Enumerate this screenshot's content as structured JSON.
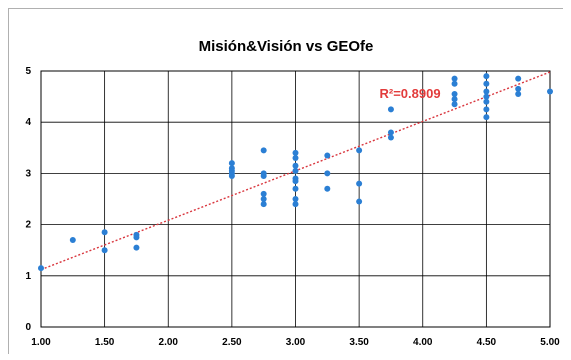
{
  "chart_data": {
    "type": "scatter",
    "title": "Misión&Visión vs GEOfe",
    "xlabel": "",
    "ylabel": "",
    "xlim": [
      1.0,
      5.0
    ],
    "ylim": [
      0,
      5
    ],
    "x_ticks": [
      "1.00",
      "1.50",
      "2.00",
      "2.50",
      "3.00",
      "3.50",
      "4.00",
      "4.50",
      "5.00"
    ],
    "y_ticks": [
      "0",
      "1",
      "2",
      "3",
      "4",
      "5"
    ],
    "grid": true,
    "legend": "none",
    "point_color": "#2b7fd4",
    "trendline": {
      "type": "linear",
      "color": "#d9363e",
      "style": "dotted",
      "x": [
        1.0,
        5.0
      ],
      "y": [
        1.12,
        4.98
      ],
      "label": "R²=0.8909"
    },
    "series": [
      {
        "points": [
          [
            1.0,
            1.15
          ],
          [
            1.25,
            1.7
          ],
          [
            1.5,
            1.85
          ],
          [
            1.5,
            1.5
          ],
          [
            1.75,
            1.8
          ],
          [
            1.75,
            1.75
          ],
          [
            1.75,
            1.55
          ],
          [
            2.5,
            3.2
          ],
          [
            2.5,
            3.1
          ],
          [
            2.5,
            3.05
          ],
          [
            2.5,
            3.0
          ],
          [
            2.5,
            2.95
          ],
          [
            2.75,
            3.45
          ],
          [
            2.75,
            3.0
          ],
          [
            2.75,
            2.95
          ],
          [
            2.75,
            2.6
          ],
          [
            2.75,
            2.5
          ],
          [
            2.75,
            2.4
          ],
          [
            3.0,
            3.4
          ],
          [
            3.0,
            3.3
          ],
          [
            3.0,
            3.15
          ],
          [
            3.0,
            3.05
          ],
          [
            3.0,
            2.9
          ],
          [
            3.0,
            2.85
          ],
          [
            3.0,
            2.7
          ],
          [
            3.0,
            2.5
          ],
          [
            3.0,
            2.4
          ],
          [
            3.25,
            3.35
          ],
          [
            3.25,
            3.0
          ],
          [
            3.25,
            2.7
          ],
          [
            3.5,
            3.45
          ],
          [
            3.5,
            2.8
          ],
          [
            3.5,
            2.45
          ],
          [
            3.75,
            4.25
          ],
          [
            3.75,
            3.8
          ],
          [
            3.75,
            3.7
          ],
          [
            4.25,
            4.85
          ],
          [
            4.25,
            4.75
          ],
          [
            4.25,
            4.55
          ],
          [
            4.25,
            4.45
          ],
          [
            4.25,
            4.35
          ],
          [
            4.5,
            4.9
          ],
          [
            4.5,
            4.75
          ],
          [
            4.5,
            4.6
          ],
          [
            4.5,
            4.5
          ],
          [
            4.5,
            4.4
          ],
          [
            4.5,
            4.25
          ],
          [
            4.5,
            4.1
          ],
          [
            4.75,
            4.85
          ],
          [
            4.75,
            4.65
          ],
          [
            4.75,
            4.55
          ],
          [
            5.0,
            4.6
          ]
        ]
      }
    ]
  }
}
